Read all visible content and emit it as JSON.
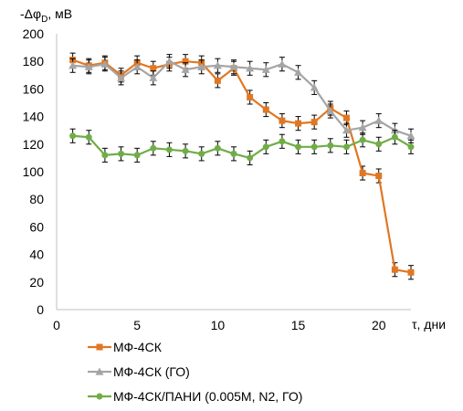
{
  "chart_data": {
    "type": "line",
    "ylabel": "-Δφ",
    "ylabel_sub": "D",
    "ylabel_unit": ", мВ",
    "xlabel": "τ, дни",
    "xlim": [
      0,
      22
    ],
    "ylim": [
      0,
      200
    ],
    "x_ticks": [
      0,
      5,
      10,
      15,
      20
    ],
    "y_ticks": [
      0,
      20,
      40,
      60,
      80,
      100,
      120,
      140,
      160,
      180,
      200
    ],
    "grid": false,
    "legend_position": "bottom-left",
    "series": [
      {
        "name": "МФ-4СК",
        "color": "#E07722",
        "marker": "square",
        "x": [
          1,
          2,
          3,
          4,
          5,
          6,
          7,
          8,
          9,
          10,
          11,
          12,
          13,
          14,
          15,
          16,
          17,
          18,
          19,
          20,
          21,
          22
        ],
        "y": [
          181,
          177,
          179,
          170,
          179,
          175,
          178,
          180,
          179,
          166,
          175,
          154,
          145,
          137,
          135,
          136,
          146,
          139,
          99,
          97,
          29,
          27
        ],
        "error": [
          5,
          5,
          5,
          5,
          5,
          5,
          5,
          5,
          5,
          5,
          5,
          5,
          5,
          5,
          5,
          5,
          5,
          5,
          5,
          5,
          5,
          5
        ]
      },
      {
        "name": "МФ-4СК (ГО)",
        "color": "#A5A5A5",
        "marker": "triangle",
        "x": [
          1,
          2,
          3,
          4,
          5,
          6,
          7,
          8,
          9,
          10,
          11,
          12,
          13,
          14,
          15,
          16,
          17,
          18,
          19,
          20,
          21,
          22
        ],
        "y": [
          177,
          176,
          178,
          168,
          176,
          168,
          180,
          174,
          176,
          177,
          176,
          175,
          174,
          178,
          172,
          161,
          144,
          130,
          132,
          137,
          130,
          126
        ],
        "error": [
          5,
          5,
          5,
          5,
          5,
          5,
          5,
          5,
          5,
          5,
          5,
          5,
          5,
          5,
          5,
          5,
          5,
          5,
          5,
          5,
          5,
          5
        ]
      },
      {
        "name": "МФ-4СК/ПАНИ  (0.005M, N2, ГО)",
        "color": "#70AD47",
        "marker": "circle",
        "x": [
          1,
          2,
          3,
          4,
          5,
          6,
          7,
          8,
          9,
          10,
          11,
          12,
          13,
          14,
          15,
          16,
          17,
          18,
          19,
          20,
          21,
          22
        ],
        "y": [
          126,
          125,
          112,
          113,
          112,
          117,
          116,
          115,
          113,
          117,
          113,
          110,
          118,
          122,
          118,
          118,
          119,
          118,
          123,
          120,
          125,
          118
        ],
        "error": [
          5,
          5,
          5,
          5,
          5,
          5,
          5,
          5,
          5,
          5,
          5,
          5,
          5,
          5,
          5,
          5,
          5,
          5,
          5,
          5,
          5,
          5
        ]
      }
    ]
  }
}
